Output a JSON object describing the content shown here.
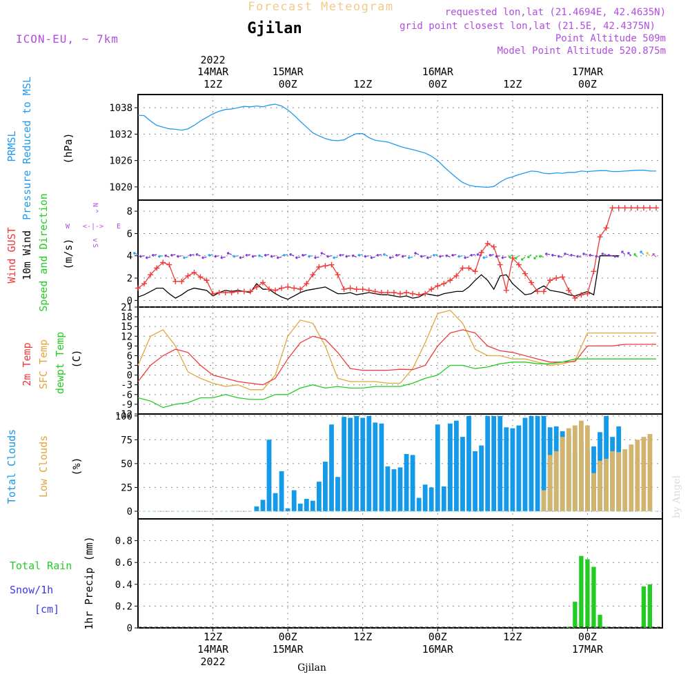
{
  "header": {
    "title": "Forecast Meteogram",
    "location": "Gjilan",
    "model": "ICON-EU, ~ 7km",
    "requested": "requested lon,lat (21.4694E, 42.4635N)",
    "grid": "grid point closest lon,lat (21.5E, 42.4375N)",
    "point_alt": "Point Altitude 509m",
    "model_alt": "Model Point Altitude 520.875m",
    "footer": "Gjilan",
    "watermark": "by Angel"
  },
  "time_axis": {
    "top_year": "2022",
    "ticks": [
      {
        "hour": 12,
        "top": "14MAR",
        "hr": "12Z",
        "year": "2022"
      },
      {
        "hour": 24,
        "top": "15MAR",
        "hr": "00Z"
      },
      {
        "hour": 36,
        "top": "",
        "hr": "12Z"
      },
      {
        "hour": 48,
        "top": "16MAR",
        "hr": "00Z"
      },
      {
        "hour": 60,
        "top": "",
        "hr": "12Z"
      },
      {
        "hour": 72,
        "top": "17MAR",
        "hr": "00Z"
      }
    ]
  },
  "labels": {
    "prmsl_a": "PRMSL",
    "prmsl_b": "Pressure Reduced to MSL",
    "prmsl_unit": "(hPa)",
    "gust": "Wind GUST",
    "wind10": "10m Wind",
    "wind_dir": "Speed and Direction",
    "wind_unit": "(m/s)",
    "compass_n": "N",
    "compass_s": "S",
    "compass_w": "W",
    "compass_e": "E",
    "t2m": "2m Temp",
    "tsfc": "SFC Temp",
    "dewpt": "dewpt Temp",
    "temp_unit": "(C)",
    "total_clouds": "Total Clouds",
    "low_clouds": "Low Clouds",
    "cloud_unit": "(%)",
    "rain": "Total  Rain",
    "snow": "Snow/1h",
    "snow_unit": "[cm]",
    "precip": "1hr Precip (mm)"
  },
  "colors": {
    "pressure": "#1e9bf0",
    "gust": "#f03a3a",
    "wind": "#000000",
    "temp2m": "#f03a3a",
    "sfc": "#e0a63a",
    "dewpt": "#22cc22",
    "total_clouds": "#149ae8",
    "low_clouds": "#d2b46e",
    "rain": "#22cc22",
    "title": "#f3c98a",
    "model": "#b04de0",
    "snow": "#3a3ae0"
  },
  "chart_data": [
    {
      "type": "line",
      "name": "prmsl",
      "ylim": [
        1017,
        1041
      ],
      "yticks": [
        1020,
        1026,
        1032,
        1038
      ],
      "x": [
        0,
        1,
        2,
        3,
        4,
        5,
        6,
        7,
        8,
        9,
        10,
        11,
        12,
        13,
        14,
        15,
        16,
        17,
        18,
        19,
        20,
        21,
        22,
        23,
        24,
        25,
        26,
        27,
        28,
        29,
        30,
        31,
        32,
        33,
        34,
        35,
        36,
        37,
        38,
        39,
        40,
        41,
        42,
        43,
        44,
        45,
        46,
        47,
        48,
        49,
        50,
        51,
        52,
        53,
        54,
        55,
        56,
        57,
        58,
        59,
        60,
        61,
        62,
        63,
        64,
        65,
        66,
        67,
        68,
        69,
        70,
        71,
        72,
        73,
        74,
        75,
        76,
        77,
        78,
        79,
        80,
        81,
        82,
        83
      ],
      "values": [
        1036.3,
        1036.2,
        1035,
        1034,
        1033.6,
        1033.2,
        1033.1,
        1032.9,
        1033.2,
        1034,
        1035,
        1035.8,
        1036.6,
        1037.2,
        1037.6,
        1037.7,
        1038,
        1038.3,
        1038.2,
        1038.4,
        1038.2,
        1038.6,
        1038.8,
        1038.4,
        1037.5,
        1036.3,
        1034.9,
        1033.6,
        1032.3,
        1031.6,
        1031,
        1030.6,
        1030.5,
        1030.7,
        1031.5,
        1032.1,
        1032.1,
        1031.2,
        1030.6,
        1030.4,
        1030.2,
        1029.7,
        1029.2,
        1028.8,
        1028.5,
        1028.1,
        1027.7,
        1027,
        1026,
        1024.6,
        1023.3,
        1022.1,
        1021,
        1020.4,
        1020.1,
        1020,
        1019.9,
        1020.1,
        1021.1,
        1021.9,
        1022.3,
        1022.8,
        1023.2,
        1023.6,
        1023.5,
        1023.1,
        1023,
        1023.2,
        1023.1,
        1023.3,
        1023.3,
        1023.6,
        1023.5,
        1023.6,
        1023.7,
        1023.7,
        1023.5,
        1023.5,
        1023.6,
        1023.7,
        1023.8,
        1023.8,
        1023.6,
        1023.6
      ]
    },
    {
      "type": "line",
      "name": "wind",
      "ylim": [
        -0.6,
        9
      ],
      "yticks": [
        0,
        2,
        4,
        6,
        8
      ],
      "gust_x": [
        0,
        1,
        2,
        3,
        4,
        5,
        6,
        7,
        8,
        9,
        10,
        11,
        12,
        13,
        14,
        15,
        16,
        17,
        18,
        19,
        20,
        21,
        22,
        23,
        24,
        25,
        26,
        27,
        28,
        29,
        30,
        31,
        32,
        33,
        34,
        35,
        36,
        37,
        38,
        39,
        40,
        41,
        42,
        43,
        44,
        45,
        46,
        47,
        48,
        49,
        50,
        51,
        52,
        53,
        54,
        55,
        56,
        57,
        58,
        59,
        60,
        61,
        62,
        63,
        64,
        65,
        66,
        67,
        68,
        69,
        70,
        71,
        72,
        73,
        74,
        75,
        76,
        77,
        78,
        79,
        80,
        81,
        82,
        83
      ],
      "gust": [
        1.1,
        1.5,
        2.3,
        2.9,
        3.4,
        3.2,
        1.7,
        1.7,
        2.2,
        2.5,
        2.1,
        1.8,
        0.6,
        0.7,
        0.7,
        0.7,
        0.8,
        0.8,
        0.8,
        1.2,
        1.6,
        1.0,
        0.9,
        1.1,
        1.2,
        1.1,
        1.0,
        1.5,
        2.3,
        3.0,
        3.1,
        3.2,
        2.3,
        1.0,
        1.1,
        1.0,
        1.0,
        0.9,
        0.8,
        0.7,
        0.7,
        0.7,
        0.6,
        0.7,
        0.6,
        0.5,
        0.6,
        1.0,
        1.3,
        1.5,
        1.8,
        2.2,
        2.9,
        2.9,
        2.6,
        4.3,
        5.1,
        4.8,
        3.2,
        0.9,
        3.8,
        3.2,
        2.4,
        1.6,
        0.8,
        0.8,
        1.8,
        2.0,
        2.1,
        0.9,
        0.2,
        0.5,
        0.6,
        2.6,
        5.7,
        6.5,
        8.3,
        8.3,
        8.3,
        8.3,
        8.3,
        8.3,
        8.3,
        8.3
      ],
      "wind_x": [
        0,
        1,
        2,
        3,
        4,
        5,
        6,
        7,
        8,
        9,
        10,
        11,
        12,
        13,
        14,
        15,
        16,
        17,
        18,
        19,
        20,
        21,
        22,
        23,
        24,
        25,
        26,
        27,
        28,
        29,
        30,
        31,
        32,
        33,
        34,
        35,
        36,
        37,
        38,
        39,
        40,
        41,
        42,
        43,
        44,
        45,
        46,
        47,
        48,
        49,
        50,
        51,
        52,
        53,
        54,
        55,
        56,
        57,
        58,
        59,
        60,
        61,
        62,
        63,
        64,
        65,
        66,
        67,
        68,
        69,
        70,
        71,
        72,
        73,
        74,
        75,
        76,
        77
      ],
      "wind": [
        0.3,
        0.5,
        0.8,
        1.1,
        1.1,
        0.6,
        0.2,
        0.5,
        0.9,
        1.1,
        1.0,
        0.9,
        0.4,
        0.7,
        0.9,
        0.8,
        0.9,
        0.8,
        0.7,
        1.5,
        1.0,
        1.0,
        0.6,
        0.3,
        0.1,
        0.4,
        0.7,
        0.9,
        1.0,
        1.1,
        1.2,
        0.9,
        0.6,
        0.6,
        0.7,
        0.5,
        0.6,
        0.7,
        0.6,
        0.5,
        0.5,
        0.4,
        0.3,
        0.4,
        0.2,
        0.3,
        0.6,
        0.5,
        0.4,
        0.6,
        0.7,
        0.8,
        0.8,
        1.2,
        1.8,
        2.3,
        1.8,
        1.0,
        2.2,
        2.3,
        1.5,
        1.0,
        0.5,
        0.6,
        1.0,
        1.3,
        0.9,
        0.8,
        0.7,
        0.5,
        0.4,
        0.6,
        0.8,
        0.5,
        4.0,
        4.0,
        4.0,
        4.0
      ]
    },
    {
      "type": "line",
      "name": "temperature",
      "ylim": [
        -12,
        21
      ],
      "yticks": [
        -12,
        -9,
        -6,
        -3,
        0,
        3,
        6,
        9,
        12,
        15,
        18,
        21
      ],
      "x": [
        0,
        2,
        4,
        6,
        8,
        10,
        12,
        14,
        16,
        18,
        20,
        22,
        24,
        26,
        28,
        30,
        32,
        34,
        36,
        38,
        40,
        42,
        44,
        46,
        48,
        50,
        52,
        54,
        56,
        58,
        60,
        62,
        64,
        66,
        68,
        70,
        72,
        74,
        76,
        78,
        80,
        82,
        83
      ],
      "t2m": [
        -2,
        3,
        6,
        8,
        7,
        3,
        0,
        -1,
        -2,
        -2.5,
        -3,
        -1,
        5,
        10,
        12,
        11,
        7,
        2,
        1.5,
        1.5,
        1.5,
        1.8,
        1.7,
        3,
        9,
        13,
        14,
        13,
        9,
        7.5,
        7,
        6,
        5,
        4,
        4,
        4.2,
        9,
        9,
        9,
        9.5,
        9.5,
        9.5,
        9.5
      ],
      "sfc": [
        3,
        12,
        14,
        9,
        1,
        -1,
        -2.5,
        -3.5,
        -3,
        -4.5,
        -4.5,
        0,
        12,
        17,
        16,
        9,
        -1,
        -2,
        -2,
        -2,
        -2.5,
        -2.5,
        2,
        10,
        19,
        20,
        16,
        8,
        6,
        6,
        5,
        5,
        4,
        3,
        3.5,
        4.5,
        13,
        13,
        13,
        13,
        13,
        13,
        13
      ],
      "dewpt": [
        -7,
        -8,
        -10,
        -9,
        -8.5,
        -7,
        -7,
        -6,
        -7,
        -7.5,
        -7.5,
        -6,
        -6,
        -4,
        -3,
        -4,
        -3.5,
        -4,
        -4,
        -3.5,
        -3.5,
        -3.5,
        -2.5,
        -1,
        0,
        3,
        3,
        2,
        2.5,
        3.5,
        4,
        4,
        3.5,
        3.5,
        4,
        5,
        5,
        5,
        5,
        5,
        5,
        5,
        5
      ]
    },
    {
      "type": "bar",
      "name": "clouds",
      "ylim": [
        -8,
        102
      ],
      "yticks": [
        0,
        25,
        50,
        75,
        100
      ],
      "total_start_hour": 19,
      "total": [
        5,
        12,
        75,
        19,
        42,
        3,
        22,
        8,
        13,
        11,
        31,
        52,
        91,
        36,
        99,
        98,
        100,
        98,
        100,
        93,
        92,
        47,
        44,
        46,
        60,
        59,
        14,
        28,
        25,
        91,
        26,
        92,
        95,
        78,
        100,
        63,
        69,
        100,
        100,
        100,
        88,
        87,
        90,
        98,
        100,
        100,
        100,
        88,
        89,
        84,
        78,
        62,
        72,
        65,
        68,
        83,
        100,
        78,
        89
      ],
      "low_start_hour": 65,
      "low": [
        22,
        59,
        63,
        78,
        87,
        90,
        95,
        90,
        40,
        53,
        55,
        63,
        62,
        65,
        70,
        75,
        78,
        81
      ]
    },
    {
      "type": "bar",
      "name": "precipitation",
      "ylim": [
        0,
        1.0
      ],
      "yticks": [
        0,
        0.2,
        0.4,
        0.6,
        0.8
      ],
      "start_hour": 68,
      "values": [
        0,
        0.01,
        0.24,
        0.66,
        0.63,
        0.56,
        0.12,
        0.01,
        0,
        0,
        0,
        0,
        0,
        0.38,
        0.4
      ]
    }
  ]
}
